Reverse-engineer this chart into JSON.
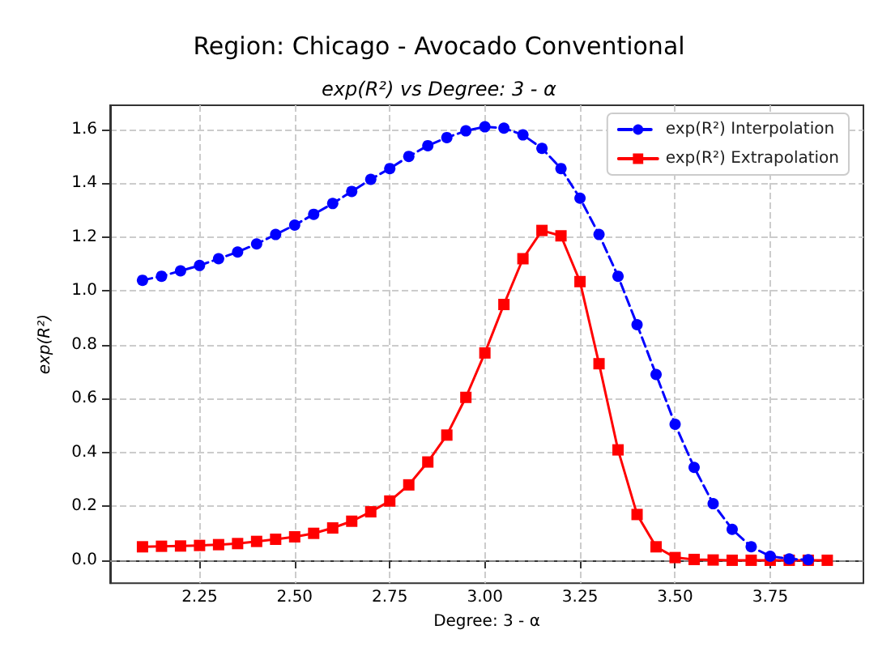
{
  "chart_data": {
    "type": "line",
    "title": "Region: Chicago - Avocado Conventional",
    "subtitle": "exp(R²) vs Degree: 3 - α",
    "xlabel": "Degree: 3 - α",
    "ylabel": "exp(R²)",
    "xlim": [
      2.015,
      3.995
    ],
    "ylim": [
      -0.085,
      1.69
    ],
    "xticks": [
      {
        "value": 2.25,
        "label": "2.25"
      },
      {
        "value": 2.5,
        "label": "2.50"
      },
      {
        "value": 2.75,
        "label": "2.75"
      },
      {
        "value": 3,
        "label": "3.00"
      },
      {
        "value": 3.25,
        "label": "3.25"
      },
      {
        "value": 3.5,
        "label": "3.50"
      },
      {
        "value": 3.75,
        "label": "3.75"
      }
    ],
    "yticks": [
      {
        "value": 0,
        "label": "0.0"
      },
      {
        "value": 0.2,
        "label": "0.2"
      },
      {
        "value": 0.4,
        "label": "0.4"
      },
      {
        "value": 0.6,
        "label": "0.6"
      },
      {
        "value": 0.8,
        "label": "0.8"
      },
      {
        "value": 1,
        "label": "1.0"
      },
      {
        "value": 1.2,
        "label": "1.2"
      },
      {
        "value": 1.4,
        "label": "1.4"
      },
      {
        "value": 1.6,
        "label": "1.6"
      }
    ],
    "grid": true,
    "legend": "top right",
    "ref_lines": [
      {
        "axis": "y",
        "value": 0,
        "color": "#808080",
        "line_style": "dashed"
      }
    ],
    "series": [
      {
        "name": "exp(R²) Interpolation",
        "color": "#0000ff",
        "marker": "circle",
        "line_style": "dashed",
        "x": [
          2.1,
          2.15,
          2.2,
          2.25,
          2.3,
          2.35,
          2.4,
          2.45,
          2.5,
          2.55,
          2.6,
          2.65,
          2.7,
          2.75,
          2.8,
          2.85,
          2.9,
          2.95,
          3,
          3.05,
          3.1,
          3.15,
          3.2,
          3.25,
          3.3,
          3.35,
          3.4,
          3.45,
          3.5,
          3.55,
          3.6,
          3.65,
          3.7,
          3.75,
          3.8,
          3.85
        ],
        "values": [
          1.04,
          1.055,
          1.075,
          1.095,
          1.12,
          1.145,
          1.175,
          1.21,
          1.245,
          1.285,
          1.325,
          1.37,
          1.415,
          1.455,
          1.5,
          1.54,
          1.57,
          1.595,
          1.61,
          1.605,
          1.58,
          1.53,
          1.455,
          1.345,
          1.21,
          1.055,
          0.875,
          0.69,
          0.505,
          0.345,
          0.21,
          0.115,
          0.05,
          0.015,
          0.005,
          0.002
        ]
      },
      {
        "name": "exp(R²) Extrapolation",
        "color": "#ff0000",
        "marker": "square",
        "line_style": "solid",
        "x": [
          2.1,
          2.15,
          2.2,
          2.25,
          2.3,
          2.35,
          2.4,
          2.45,
          2.5,
          2.55,
          2.6,
          2.65,
          2.7,
          2.75,
          2.8,
          2.85,
          2.9,
          2.95,
          3,
          3.05,
          3.1,
          3.15,
          3.2,
          3.25,
          3.3,
          3.35,
          3.4,
          3.45,
          3.5,
          3.55,
          3.6,
          3.65,
          3.7,
          3.75,
          3.8,
          3.85,
          3.9
        ],
        "values": [
          0.05,
          0.052,
          0.053,
          0.055,
          0.058,
          0.062,
          0.07,
          0.078,
          0.087,
          0.1,
          0.12,
          0.145,
          0.18,
          0.22,
          0.28,
          0.365,
          0.465,
          0.605,
          0.77,
          0.95,
          1.12,
          1.225,
          1.205,
          1.035,
          0.73,
          0.41,
          0.17,
          0.05,
          0.01,
          0.003,
          0.001,
          0,
          0,
          0,
          0,
          0,
          0
        ]
      }
    ]
  }
}
